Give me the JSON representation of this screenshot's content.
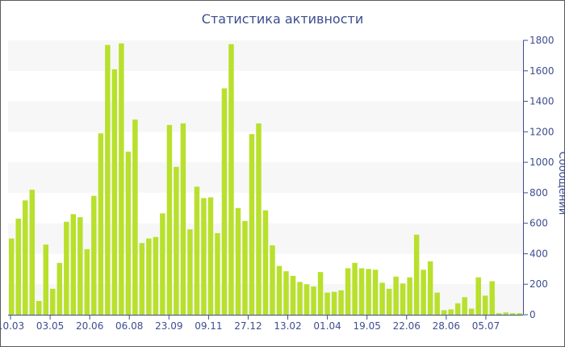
{
  "chart_data": {
    "type": "bar",
    "title": "Статистика активности",
    "xlabel": "",
    "ylabel": "Сообщений",
    "ylim": [
      0,
      1800
    ],
    "yticks": [
      0,
      200,
      400,
      600,
      800,
      1000,
      1200,
      1400,
      1600,
      1800
    ],
    "grid": "alternating horizontal bands",
    "y_axis_position": "right",
    "x_tick_labels": [
      "10.03",
      "03.05",
      "20.06",
      "06.08",
      "23.09",
      "09.11",
      "27.12",
      "13.02",
      "01.04",
      "19.05",
      "22.06",
      "28.06",
      "05.07"
    ],
    "series": [
      {
        "color": "#b8e02c",
        "values": [
          500,
          630,
          750,
          820,
          90,
          460,
          170,
          340,
          610,
          660,
          640,
          430,
          780,
          1190,
          1770,
          1610,
          1780,
          1070,
          1280,
          470,
          500,
          510,
          665,
          1245,
          970,
          1255,
          560,
          840,
          765,
          770,
          535,
          1485,
          1775,
          700,
          615,
          1185,
          1255,
          685,
          455,
          320,
          285,
          255,
          215,
          200,
          185,
          280,
          145,
          150,
          160,
          305,
          340,
          305,
          300,
          295,
          210,
          170,
          250,
          205,
          245,
          525,
          295,
          350,
          145,
          30,
          35,
          75,
          115,
          40,
          245,
          125,
          220,
          10,
          15,
          10,
          10
        ]
      }
    ]
  },
  "colors": {
    "bar": "#b8e02c",
    "band": "#f7f7f7",
    "axis": "#3d4d8f",
    "text": "#3d4d8f"
  }
}
